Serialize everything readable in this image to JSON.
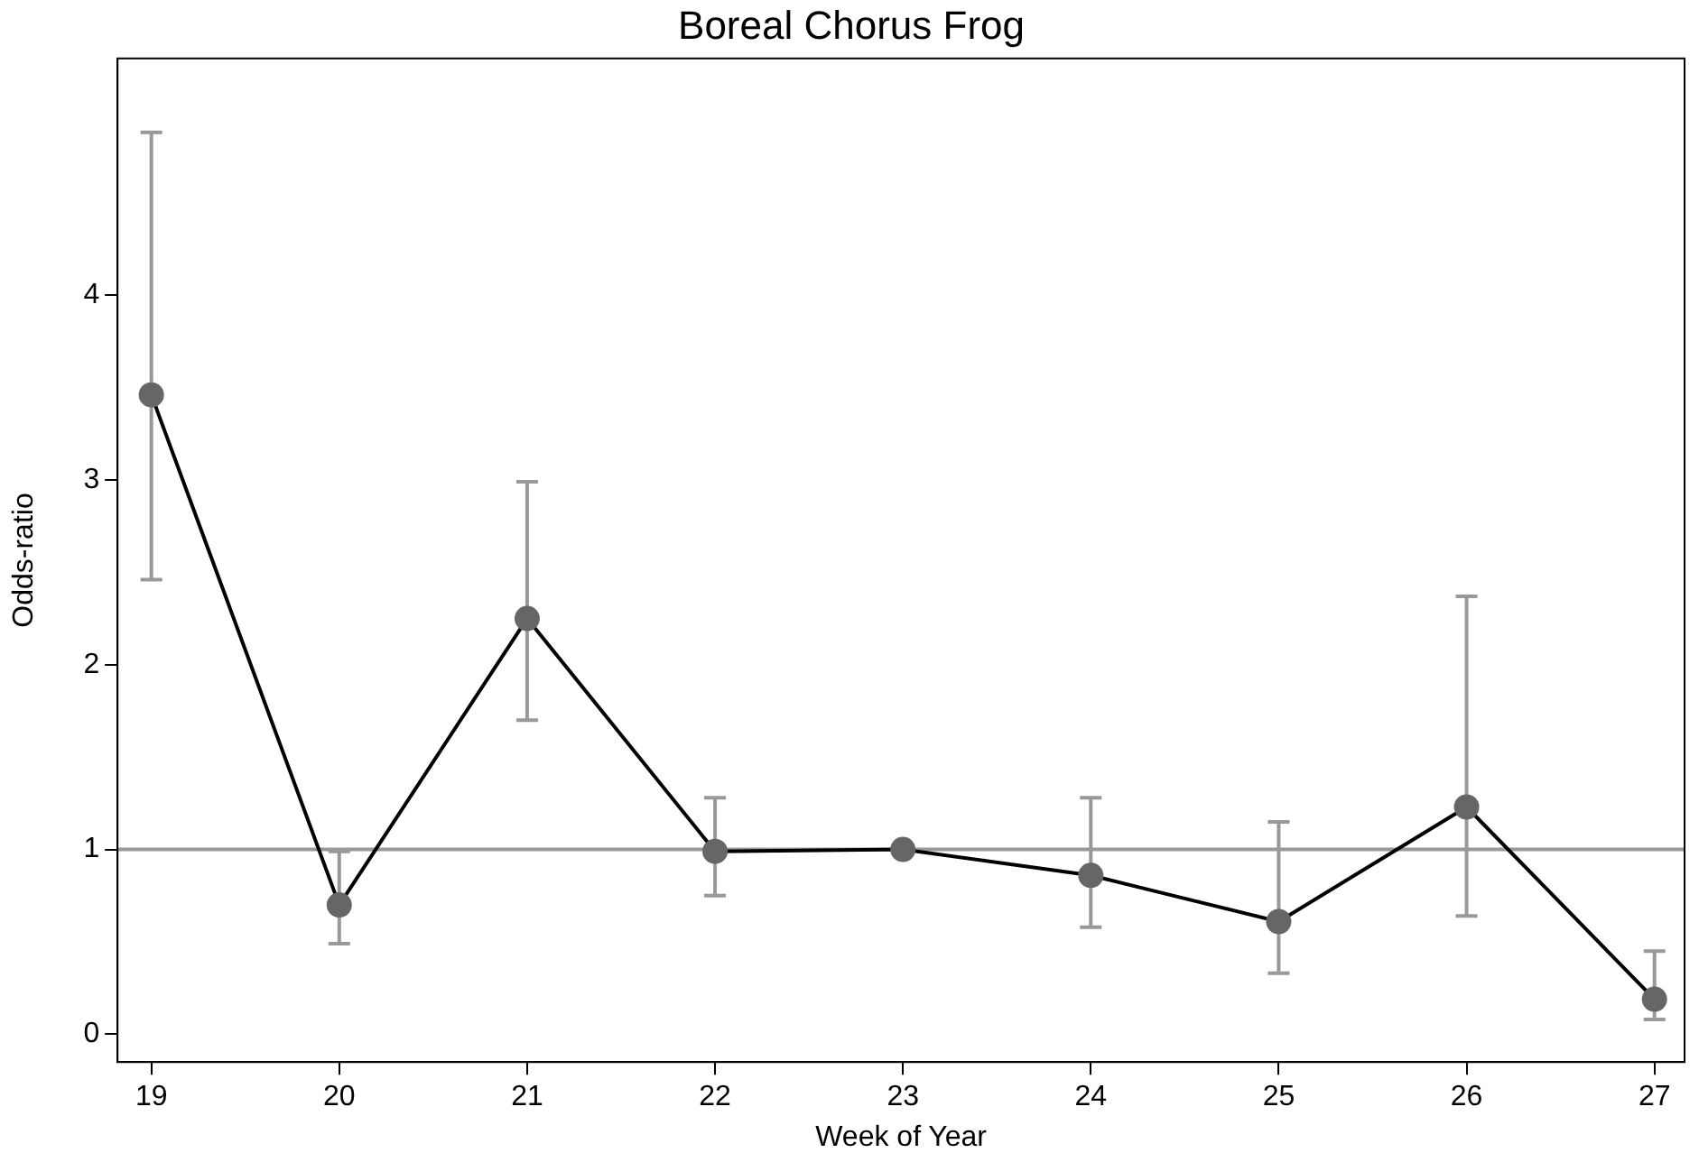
{
  "chart_data": {
    "type": "line",
    "title": "Boreal Chorus Frog",
    "xlabel": "Week of Year",
    "ylabel": "Odds-ratio",
    "x": [
      19,
      20,
      21,
      22,
      23,
      24,
      25,
      26,
      27
    ],
    "series": [
      {
        "color": "#000000",
        "values": [
          3.46,
          0.7,
          2.25,
          0.99,
          1.0,
          0.86,
          0.61,
          1.23,
          0.19
        ],
        "errors": [
          [
            2.46,
            4.88
          ],
          [
            0.49,
            0.99
          ],
          [
            1.7,
            2.99
          ],
          [
            0.75,
            1.28
          ],
          null,
          [
            0.58,
            1.28
          ],
          [
            0.33,
            1.15
          ],
          [
            0.64,
            2.37
          ],
          [
            0.08,
            0.45
          ]
        ]
      }
    ],
    "marker": "circle",
    "grid": false,
    "legend": false,
    "xlim": [
      18.82,
      27.16
    ],
    "xticks": [
      19,
      20,
      21,
      22,
      23,
      24,
      25,
      26,
      27
    ],
    "ylim": [
      -0.15,
      5.28
    ],
    "yticks": [
      0,
      1,
      2,
      3,
      4
    ],
    "ref_lines": [
      {
        "axis": "y",
        "value": 1,
        "color": "#999999"
      }
    ]
  }
}
